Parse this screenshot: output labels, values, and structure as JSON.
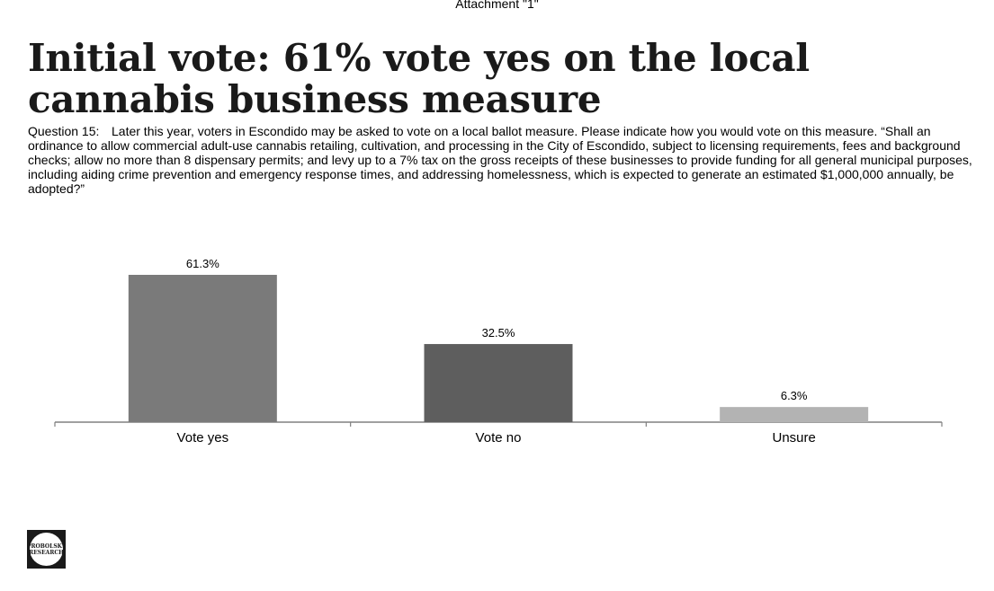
{
  "header": {
    "attachment": "Attachment \"1\""
  },
  "slide": {
    "title": "Initial vote: 61% vote yes on the local cannabis business measure",
    "question_label": "Question 15:",
    "question_text": "Later this year, voters in Escondido may be asked to vote on a local ballot measure. Please indicate how you would vote on this measure. “Shall an ordinance to allow commercial adult-use cannabis retailing, cultivation, and processing in the City of Escondido, subject to licensing requirements, fees and background checks; allow no more than 8 dispensary permits; and levy up to a 7% tax on the gross receipts of these businesses to provide funding for all general municipal purposes, including aiding crime prevention and emergency response times, and addressing homelessness, which is expected to generate an estimated $1,000,000 annually, be adopted?”"
  },
  "chart_data": {
    "type": "bar",
    "categories": [
      "Vote yes",
      "Vote no",
      "Unsure"
    ],
    "values": [
      61.3,
      32.5,
      6.3
    ],
    "value_labels": [
      "61.3%",
      "32.5%",
      "6.3%"
    ],
    "colors": [
      "#7a7a7a",
      "#5e5e5e",
      "#b3b3b3"
    ],
    "axis_color": "#808080",
    "title": "",
    "xlabel": "",
    "ylabel": "",
    "ylim": [
      0,
      61.3
    ],
    "grid": false,
    "legend": "none"
  },
  "logo": {
    "text": "PROBOLSKY RESEARCH"
  }
}
